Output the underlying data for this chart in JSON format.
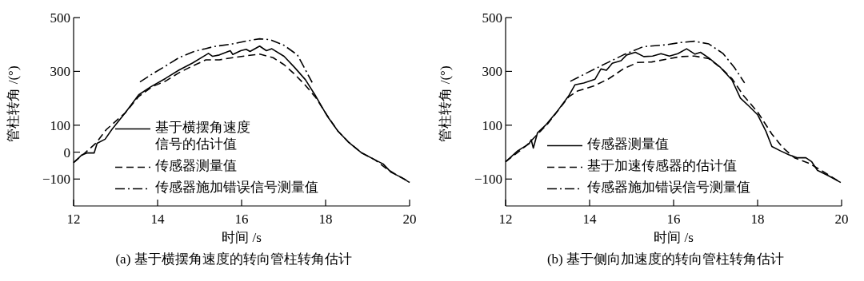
{
  "chart_data": [
    {
      "type": "line",
      "title": "(a) 基于横摆角速度的转向管柱转角估计",
      "xlabel": "时间 /s",
      "ylabel": "管柱转角 /(°)",
      "xlim": [
        12,
        20
      ],
      "ylim": [
        -200,
        500
      ],
      "xticks": [
        12,
        14,
        16,
        18,
        20
      ],
      "yticks": [
        -100,
        0,
        100,
        300,
        500
      ],
      "legend": "bottom",
      "series": [
        {
          "name": "基于横摆角速度信号的估计值",
          "color": "#000000",
          "line_style": "solid",
          "x": [
            12,
            12.2,
            12.33,
            12.49,
            12.56,
            12.75,
            12.91,
            13.23,
            13.55,
            13.84,
            14.19,
            14.51,
            14.83,
            15.21,
            15.31,
            15.47,
            15.73,
            15.79,
            15.98,
            16.11,
            16.2,
            16.43,
            16.59,
            16.72,
            17.01,
            17.26,
            17.52,
            17.77,
            18.03,
            18.29,
            18.54,
            18.86,
            19.18,
            19.37,
            19.56,
            19.82,
            20
          ],
          "values": [
            -39,
            -10,
            -3,
            -3,
            33,
            48,
            84,
            146,
            213,
            243,
            274,
            305,
            331,
            367,
            356,
            361,
            377,
            363,
            377,
            382,
            374,
            394,
            377,
            384,
            356,
            315,
            269,
            207,
            136,
            79,
            38,
            -3,
            -29,
            -44,
            -75,
            -95,
            -113
          ]
        },
        {
          "name": "传感器测量值",
          "color": "#000000",
          "line_style": "dashed",
          "x": [
            12,
            12.27,
            12.53,
            12.78,
            13.23,
            13.55,
            13.87,
            14.19,
            14.51,
            14.83,
            15.15,
            15.47,
            15.79,
            16.11,
            16.43,
            16.75,
            17.01,
            17.26,
            17.52,
            17.77,
            18.03,
            18.29,
            18.54,
            18.86,
            19.18,
            19.44,
            19.69,
            20
          ],
          "values": [
            -39,
            -3,
            33,
            84,
            146,
            207,
            243,
            264,
            295,
            320,
            343,
            343,
            351,
            358,
            364,
            351,
            325,
            290,
            248,
            202,
            138,
            79,
            38,
            -3,
            -29,
            -60,
            -85,
            -111
          ]
        },
        {
          "name": "传感器施加错误信号测量值",
          "color": "#000000",
          "line_style": "dashdot",
          "x": [
            13.58,
            13.87,
            14.19,
            14.51,
            14.83,
            15.33,
            15.78,
            16.11,
            16.43,
            16.68,
            17.01,
            17.33,
            17.68
          ],
          "values": [
            261,
            290,
            320,
            351,
            372,
            392,
            402,
            413,
            421,
            418,
            397,
            361,
            259
          ]
        }
      ]
    },
    {
      "type": "line",
      "title": "(b) 基于侧向加速度的转向管柱转角估计",
      "xlabel": "时间 /s",
      "ylabel": "管柱转角 /(°)",
      "xlim": [
        12,
        20
      ],
      "ylim": [
        -200,
        500
      ],
      "xticks": [
        12,
        14,
        16,
        18,
        20
      ],
      "yticks": [
        -100,
        100,
        300,
        500
      ],
      "legend": "bottom",
      "series": [
        {
          "name": "传感器测量值",
          "color": "#000000",
          "line_style": "solid",
          "x": [
            12,
            12.29,
            12.56,
            12.61,
            12.66,
            12.76,
            12.97,
            13.24,
            13.51,
            13.65,
            13.86,
            14.13,
            14.27,
            14.4,
            14.54,
            14.75,
            14.88,
            15.09,
            15.29,
            15.5,
            15.7,
            15.9,
            16.1,
            16.31,
            16.51,
            16.64,
            16.84,
            17.12,
            17.39,
            17.59,
            17.8,
            18.0,
            18.2,
            18.34,
            18.54,
            18.75,
            18.95,
            19.15,
            19.29,
            19.42,
            19.69,
            19.98
          ],
          "values": [
            -36,
            5,
            31,
            46,
            15,
            72,
            103,
            154,
            211,
            250,
            257,
            271,
            309,
            304,
            330,
            340,
            361,
            371,
            355,
            357,
            366,
            357,
            366,
            384,
            364,
            371,
            350,
            314,
            268,
            201,
            170,
            139,
            77,
            21,
            5,
            -10,
            -21,
            -21,
            -36,
            -67,
            -88,
            -113
          ]
        },
        {
          "name": "基于加速传感器的估计值",
          "color": "#000000",
          "line_style": "dashed",
          "x": [
            12,
            12.5,
            13,
            13.5,
            13.71,
            14.12,
            14.46,
            14.8,
            15.14,
            15.48,
            15.82,
            16.16,
            16.5,
            16.84,
            17.12,
            17.39,
            17.66,
            18,
            18.34,
            18.61,
            18.88,
            19.22,
            19.56,
            19.98
          ],
          "values": [
            -36,
            25,
            105,
            205,
            227,
            247,
            273,
            309,
            333,
            335,
            345,
            355,
            357,
            347,
            314,
            273,
            211,
            149,
            67,
            15,
            -21,
            -41,
            -72,
            -113
          ]
        },
        {
          "name": "传感器施加错误信号测量值",
          "color": "#000000",
          "line_style": "dashdot",
          "x": [
            13.54,
            13.98,
            14.46,
            14.8,
            15.28,
            15.82,
            16.16,
            16.5,
            16.84,
            17.18,
            17.45,
            17.69
          ],
          "values": [
            263,
            298,
            335,
            361,
            392,
            399,
            407,
            412,
            402,
            366,
            314,
            257
          ]
        }
      ]
    }
  ]
}
